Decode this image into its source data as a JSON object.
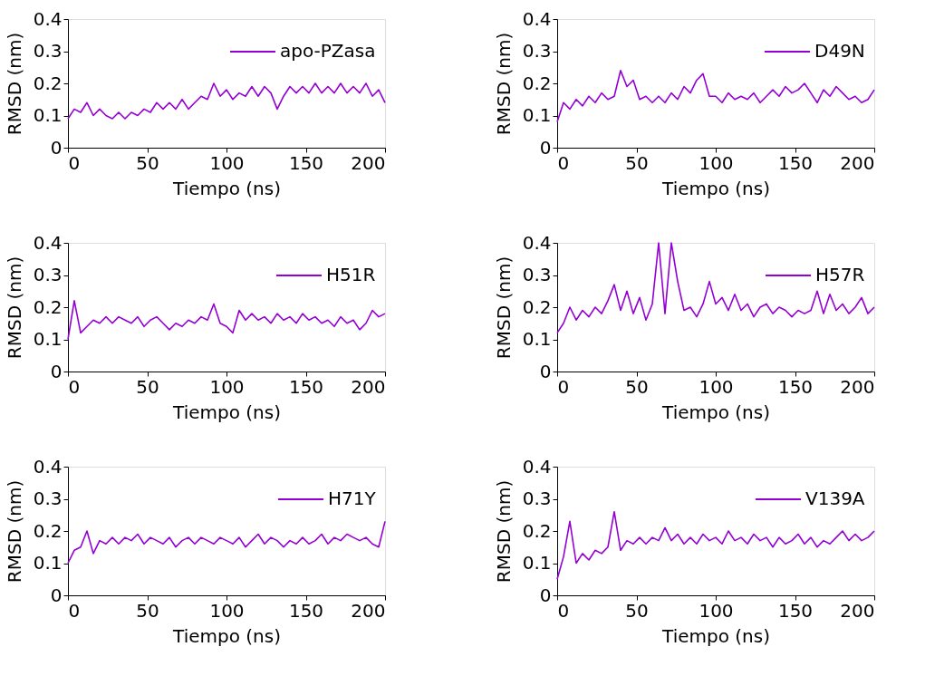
{
  "chart_data": [
    {
      "type": "line",
      "xlabel": "Tiempo (ns)",
      "ylabel": "RMSD (nm)",
      "xlim": [
        0,
        200
      ],
      "xticks": [
        0,
        50,
        100,
        150,
        200
      ],
      "ylim": [
        0,
        0.4
      ],
      "yticks": [
        0,
        0.1,
        0.2,
        0.3,
        0.4
      ],
      "grid": false,
      "legend": "top right",
      "line_style": "solid",
      "x": [
        0,
        4,
        8,
        12,
        16,
        20,
        24,
        28,
        32,
        36,
        40,
        44,
        48,
        52,
        56,
        60,
        64,
        68,
        72,
        76,
        80,
        84,
        88,
        92,
        96,
        100,
        104,
        108,
        112,
        116,
        120,
        124,
        128,
        132,
        136,
        140,
        144,
        148,
        152,
        156,
        160,
        164,
        168,
        172,
        176,
        180,
        184,
        188,
        192,
        196,
        200
      ],
      "series": [
        {
          "name": "apo-PZasa",
          "color": "#9400d3",
          "values": [
            0.09,
            0.12,
            0.11,
            0.14,
            0.1,
            0.12,
            0.1,
            0.09,
            0.11,
            0.09,
            0.11,
            0.1,
            0.12,
            0.11,
            0.14,
            0.12,
            0.14,
            0.12,
            0.15,
            0.12,
            0.14,
            0.16,
            0.15,
            0.2,
            0.16,
            0.18,
            0.15,
            0.17,
            0.16,
            0.19,
            0.16,
            0.19,
            0.17,
            0.12,
            0.16,
            0.19,
            0.17,
            0.19,
            0.17,
            0.2,
            0.17,
            0.19,
            0.17,
            0.2,
            0.17,
            0.19,
            0.17,
            0.2,
            0.16,
            0.18,
            0.14
          ]
        }
      ]
    },
    {
      "type": "line",
      "xlabel": "Tiempo (ns)",
      "ylabel": "RMSD (nm)",
      "xlim": [
        0,
        200
      ],
      "xticks": [
        0,
        50,
        100,
        150,
        200
      ],
      "ylim": [
        0,
        0.4
      ],
      "yticks": [
        0,
        0.1,
        0.2,
        0.3,
        0.4
      ],
      "grid": false,
      "legend": "top right",
      "line_style": "solid",
      "x": [
        0,
        4,
        8,
        12,
        16,
        20,
        24,
        28,
        32,
        36,
        40,
        44,
        48,
        52,
        56,
        60,
        64,
        68,
        72,
        76,
        80,
        84,
        88,
        92,
        96,
        100,
        104,
        108,
        112,
        116,
        120,
        124,
        128,
        132,
        136,
        140,
        144,
        148,
        152,
        156,
        160,
        164,
        168,
        172,
        176,
        180,
        184,
        188,
        192,
        196,
        200
      ],
      "series": [
        {
          "name": "D49N",
          "color": "#9400d3",
          "values": [
            0.08,
            0.14,
            0.12,
            0.15,
            0.13,
            0.16,
            0.14,
            0.17,
            0.15,
            0.16,
            0.24,
            0.19,
            0.21,
            0.15,
            0.16,
            0.14,
            0.16,
            0.14,
            0.17,
            0.15,
            0.19,
            0.17,
            0.21,
            0.23,
            0.16,
            0.16,
            0.14,
            0.17,
            0.15,
            0.16,
            0.15,
            0.17,
            0.14,
            0.16,
            0.18,
            0.16,
            0.19,
            0.17,
            0.18,
            0.2,
            0.17,
            0.14,
            0.18,
            0.16,
            0.19,
            0.17,
            0.15,
            0.16,
            0.14,
            0.15,
            0.18
          ]
        }
      ]
    },
    {
      "type": "line",
      "xlabel": "Tiempo (ns)",
      "ylabel": "RMSD (nm)",
      "xlim": [
        0,
        200
      ],
      "xticks": [
        0,
        50,
        100,
        150,
        200
      ],
      "ylim": [
        0,
        0.4
      ],
      "yticks": [
        0,
        0.1,
        0.2,
        0.3,
        0.4
      ],
      "grid": false,
      "legend": "top right",
      "line_style": "solid",
      "x": [
        0,
        4,
        8,
        12,
        16,
        20,
        24,
        28,
        32,
        36,
        40,
        44,
        48,
        52,
        56,
        60,
        64,
        68,
        72,
        76,
        80,
        84,
        88,
        92,
        96,
        100,
        104,
        108,
        112,
        116,
        120,
        124,
        128,
        132,
        136,
        140,
        144,
        148,
        152,
        156,
        160,
        164,
        168,
        172,
        176,
        180,
        184,
        188,
        192,
        196,
        200
      ],
      "series": [
        {
          "name": "H51R",
          "color": "#9400d3",
          "values": [
            0.1,
            0.22,
            0.12,
            0.14,
            0.16,
            0.15,
            0.17,
            0.15,
            0.17,
            0.16,
            0.15,
            0.17,
            0.14,
            0.16,
            0.17,
            0.15,
            0.13,
            0.15,
            0.14,
            0.16,
            0.15,
            0.17,
            0.16,
            0.21,
            0.15,
            0.14,
            0.12,
            0.19,
            0.16,
            0.18,
            0.16,
            0.17,
            0.15,
            0.18,
            0.16,
            0.17,
            0.15,
            0.18,
            0.16,
            0.17,
            0.15,
            0.16,
            0.14,
            0.17,
            0.15,
            0.16,
            0.13,
            0.15,
            0.19,
            0.17,
            0.18
          ]
        }
      ]
    },
    {
      "type": "line",
      "xlabel": "Tiempo (ns)",
      "ylabel": "RMSD (nm)",
      "xlim": [
        0,
        200
      ],
      "xticks": [
        0,
        50,
        100,
        150,
        200
      ],
      "ylim": [
        0,
        0.4
      ],
      "yticks": [
        0,
        0.1,
        0.2,
        0.3,
        0.4
      ],
      "grid": false,
      "legend": "top right",
      "line_style": "solid",
      "x": [
        0,
        4,
        8,
        12,
        16,
        20,
        24,
        28,
        32,
        36,
        40,
        44,
        48,
        52,
        56,
        60,
        64,
        68,
        72,
        76,
        80,
        84,
        88,
        92,
        96,
        100,
        104,
        108,
        112,
        116,
        120,
        124,
        128,
        132,
        136,
        140,
        144,
        148,
        152,
        156,
        160,
        164,
        168,
        172,
        176,
        180,
        184,
        188,
        192,
        196,
        200
      ],
      "series": [
        {
          "name": "H57R",
          "color": "#9400d3",
          "values": [
            0.12,
            0.15,
            0.2,
            0.16,
            0.19,
            0.17,
            0.2,
            0.18,
            0.22,
            0.27,
            0.19,
            0.25,
            0.18,
            0.23,
            0.16,
            0.21,
            0.4,
            0.18,
            0.4,
            0.28,
            0.19,
            0.2,
            0.17,
            0.21,
            0.28,
            0.21,
            0.23,
            0.19,
            0.24,
            0.19,
            0.21,
            0.17,
            0.2,
            0.21,
            0.18,
            0.2,
            0.19,
            0.17,
            0.19,
            0.18,
            0.19,
            0.25,
            0.18,
            0.24,
            0.19,
            0.21,
            0.18,
            0.2,
            0.23,
            0.18,
            0.2
          ]
        }
      ]
    },
    {
      "type": "line",
      "xlabel": "Tiempo (ns)",
      "ylabel": "RMSD (nm)",
      "xlim": [
        0,
        200
      ],
      "xticks": [
        0,
        50,
        100,
        150,
        200
      ],
      "ylim": [
        0,
        0.4
      ],
      "yticks": [
        0,
        0.1,
        0.2,
        0.3,
        0.4
      ],
      "grid": false,
      "legend": "top right",
      "line_style": "solid",
      "x": [
        0,
        4,
        8,
        12,
        16,
        20,
        24,
        28,
        32,
        36,
        40,
        44,
        48,
        52,
        56,
        60,
        64,
        68,
        72,
        76,
        80,
        84,
        88,
        92,
        96,
        100,
        104,
        108,
        112,
        116,
        120,
        124,
        128,
        132,
        136,
        140,
        144,
        148,
        152,
        156,
        160,
        164,
        168,
        172,
        176,
        180,
        184,
        188,
        192,
        196,
        200
      ],
      "series": [
        {
          "name": "H71Y",
          "color": "#9400d3",
          "values": [
            0.1,
            0.14,
            0.15,
            0.2,
            0.13,
            0.17,
            0.16,
            0.18,
            0.16,
            0.18,
            0.17,
            0.19,
            0.16,
            0.18,
            0.17,
            0.16,
            0.18,
            0.15,
            0.17,
            0.18,
            0.16,
            0.18,
            0.17,
            0.16,
            0.18,
            0.17,
            0.16,
            0.18,
            0.15,
            0.17,
            0.19,
            0.16,
            0.18,
            0.17,
            0.15,
            0.17,
            0.16,
            0.18,
            0.16,
            0.17,
            0.19,
            0.16,
            0.18,
            0.17,
            0.19,
            0.18,
            0.17,
            0.18,
            0.16,
            0.15,
            0.23
          ]
        }
      ]
    },
    {
      "type": "line",
      "xlabel": "Tiempo (ns)",
      "ylabel": "RMSD (nm)",
      "xlim": [
        0,
        200
      ],
      "xticks": [
        0,
        50,
        100,
        150,
        200
      ],
      "ylim": [
        0,
        0.4
      ],
      "yticks": [
        0,
        0.1,
        0.2,
        0.3,
        0.4
      ],
      "grid": false,
      "legend": "top right",
      "line_style": "solid",
      "x": [
        0,
        4,
        8,
        12,
        16,
        20,
        24,
        28,
        32,
        36,
        40,
        44,
        48,
        52,
        56,
        60,
        64,
        68,
        72,
        76,
        80,
        84,
        88,
        92,
        96,
        100,
        104,
        108,
        112,
        116,
        120,
        124,
        128,
        132,
        136,
        140,
        144,
        148,
        152,
        156,
        160,
        164,
        168,
        172,
        176,
        180,
        184,
        188,
        192,
        196,
        200
      ],
      "series": [
        {
          "name": "V139A",
          "color": "#9400d3",
          "values": [
            0.05,
            0.12,
            0.23,
            0.1,
            0.13,
            0.11,
            0.14,
            0.13,
            0.15,
            0.26,
            0.14,
            0.17,
            0.16,
            0.18,
            0.16,
            0.18,
            0.17,
            0.21,
            0.17,
            0.19,
            0.16,
            0.18,
            0.16,
            0.19,
            0.17,
            0.18,
            0.16,
            0.2,
            0.17,
            0.18,
            0.16,
            0.19,
            0.17,
            0.18,
            0.15,
            0.18,
            0.16,
            0.17,
            0.19,
            0.16,
            0.18,
            0.15,
            0.17,
            0.16,
            0.18,
            0.2,
            0.17,
            0.19,
            0.17,
            0.18,
            0.2
          ]
        }
      ]
    }
  ]
}
